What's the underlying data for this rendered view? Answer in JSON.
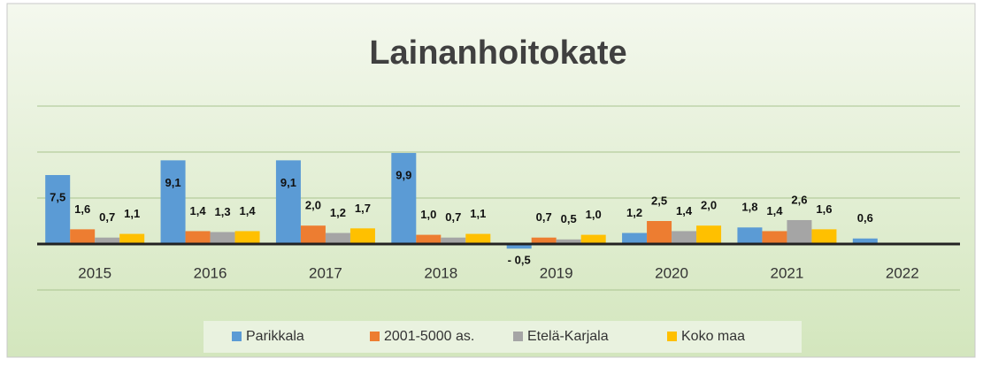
{
  "chart_data": {
    "type": "bar",
    "title": "Lainanhoitokate",
    "categories": [
      "2015",
      "2016",
      "2017",
      "2018",
      "2019",
      "2020",
      "2021",
      "2022"
    ],
    "series": [
      {
        "name": "Parikkala",
        "color": "#5b9bd5",
        "values": [
          7.5,
          9.1,
          9.1,
          9.9,
          -0.5,
          1.2,
          1.8,
          0.6
        ],
        "value_labels": [
          "7,5",
          "9,1",
          "9,1",
          "9,9",
          "- 0,5",
          "1,2",
          "1,8",
          "0,6"
        ]
      },
      {
        "name": "2001-5000 as.",
        "color": "#ed7d31",
        "values": [
          1.6,
          1.4,
          2.0,
          1.0,
          0.7,
          2.5,
          1.4,
          null
        ],
        "value_labels": [
          "1,6",
          "1,4",
          "2,0",
          "1,0",
          "0,7",
          "2,5",
          "1,4",
          null
        ]
      },
      {
        "name": "Etelä-Karjala",
        "color": "#a5a5a5",
        "values": [
          0.7,
          1.3,
          1.2,
          0.7,
          0.5,
          1.4,
          2.6,
          null
        ],
        "value_labels": [
          "0,7",
          "1,3",
          "1,2",
          "0,7",
          "0,5",
          "1,4",
          "2,6",
          null
        ]
      },
      {
        "name": "Koko maa",
        "color": "#ffc000",
        "values": [
          1.1,
          1.4,
          1.7,
          1.1,
          1.0,
          2.0,
          1.6,
          null
        ],
        "value_labels": [
          "1,1",
          "1,4",
          "1,7",
          "1,1",
          "1,0",
          "2,0",
          "1,6",
          null
        ]
      }
    ],
    "ylim": [
      -5,
      15
    ],
    "yticks": [
      -5,
      0,
      5,
      10,
      15
    ],
    "grid": true,
    "legend": "bottom"
  }
}
